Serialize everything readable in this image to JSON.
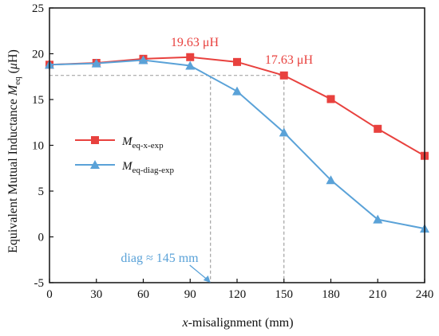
{
  "chart_data": {
    "type": "line",
    "x": [
      0,
      30,
      60,
      90,
      120,
      150,
      180,
      210,
      240
    ],
    "xlim": [
      0,
      240
    ],
    "ylim": [
      -5,
      25
    ],
    "x_ticks": [
      "0",
      "30",
      "60",
      "90",
      "120",
      "150",
      "180",
      "210",
      "240"
    ],
    "y_ticks": [
      "-5",
      "0",
      "5",
      "10",
      "15",
      "20",
      "25"
    ],
    "xlabel": {
      "prefix": "x",
      "text": "-misalignment (mm)"
    },
    "ylabel": {
      "text": "Equivalent Mutual Inductance ",
      "symbol": "M",
      "sub": "eq",
      "unit_open": " (",
      "unit_mu": "μ",
      "unit_close": "H)"
    },
    "grid": false,
    "legend_position": "middle-left",
    "series": [
      {
        "key": "x",
        "symbol": "M",
        "sub": "eq-x-exp",
        "color": "#e8413e",
        "marker": "square",
        "values": [
          18.8,
          19.0,
          19.45,
          19.63,
          19.1,
          17.63,
          15.05,
          11.8,
          8.85
        ]
      },
      {
        "key": "diag",
        "symbol": "M",
        "sub": "eq-diag-exp",
        "color": "#5aa2d8",
        "marker": "triangle",
        "values": [
          18.8,
          18.95,
          19.3,
          18.7,
          15.9,
          11.4,
          6.2,
          1.9,
          0.9
        ]
      }
    ],
    "annotations": {
      "peak_x": {
        "text": "19.63 μH",
        "x": 90,
        "y": 19.63,
        "color": "#e8413e"
      },
      "x150": {
        "text": "17.63 μH",
        "x": 150,
        "y": 17.63,
        "color": "#e8413e"
      },
      "diag_equiv": {
        "text": "diag ≈ 145 mm",
        "x": 103,
        "y": -5,
        "color": "#5aa2d8"
      },
      "ref_line": {
        "y": 17.63,
        "x_end": 150,
        "vertical_x": [
          103,
          150
        ],
        "color": "#9a9a9a"
      }
    }
  }
}
